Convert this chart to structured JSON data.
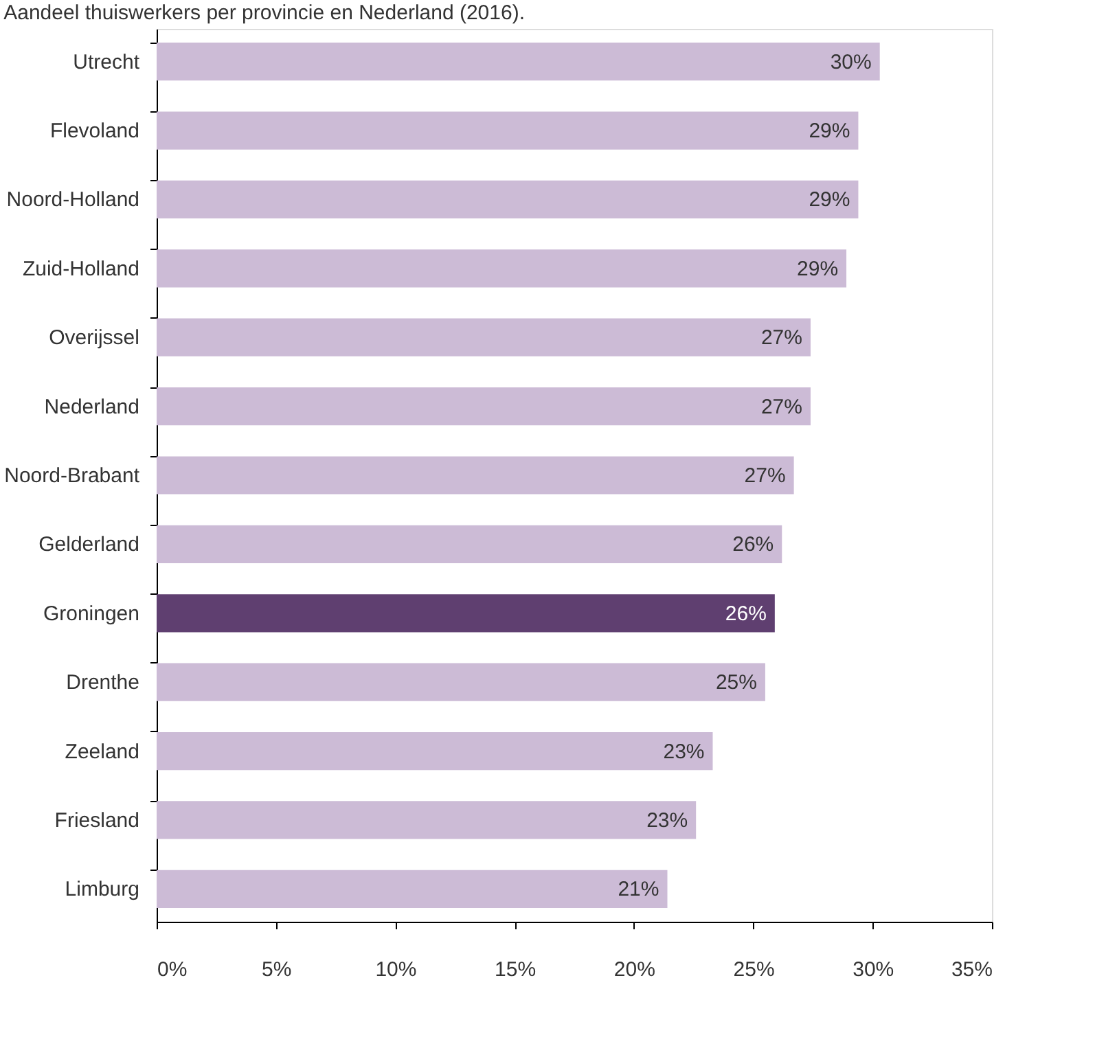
{
  "chart_data": {
    "type": "bar",
    "orientation": "horizontal",
    "title": "Aandeel thuiswerkers per provincie en Nederland (2016).",
    "categories": [
      "Utrecht",
      "Flevoland",
      "Noord-Holland",
      "Zuid-Holland",
      "Overijssel",
      "Nederland",
      "Noord-Brabant",
      "Gelderland",
      "Groningen",
      "Drenthe",
      "Zeeland",
      "Friesland",
      "Limburg"
    ],
    "values": [
      30.3,
      29.4,
      29.4,
      28.9,
      27.4,
      27.4,
      26.7,
      26.2,
      25.9,
      25.5,
      23.3,
      22.6,
      21.4
    ],
    "value_labels": [
      "30%",
      "29%",
      "29%",
      "29%",
      "27%",
      "27%",
      "27%",
      "26%",
      "26%",
      "25%",
      "23%",
      "23%",
      "21%"
    ],
    "colors": [
      "#ccbbd6",
      "#ccbbd6",
      "#ccbbd6",
      "#ccbbd6",
      "#ccbbd6",
      "#ccbbd6",
      "#ccbbd6",
      "#ccbbd6",
      "#5f3f70",
      "#ccbbd6",
      "#ccbbd6",
      "#ccbbd6",
      "#ccbbd6"
    ],
    "xlim": [
      0,
      35
    ],
    "xticks": [
      {
        "value": 0,
        "label": "0%"
      },
      {
        "value": 5,
        "label": "5%"
      },
      {
        "value": 10,
        "label": "10%"
      },
      {
        "value": 15,
        "label": "15%"
      },
      {
        "value": 20,
        "label": "20%"
      },
      {
        "value": 25,
        "label": "25%"
      },
      {
        "value": 30,
        "label": "30%"
      },
      {
        "value": 35,
        "label": "35%"
      }
    ],
    "grid": false
  }
}
